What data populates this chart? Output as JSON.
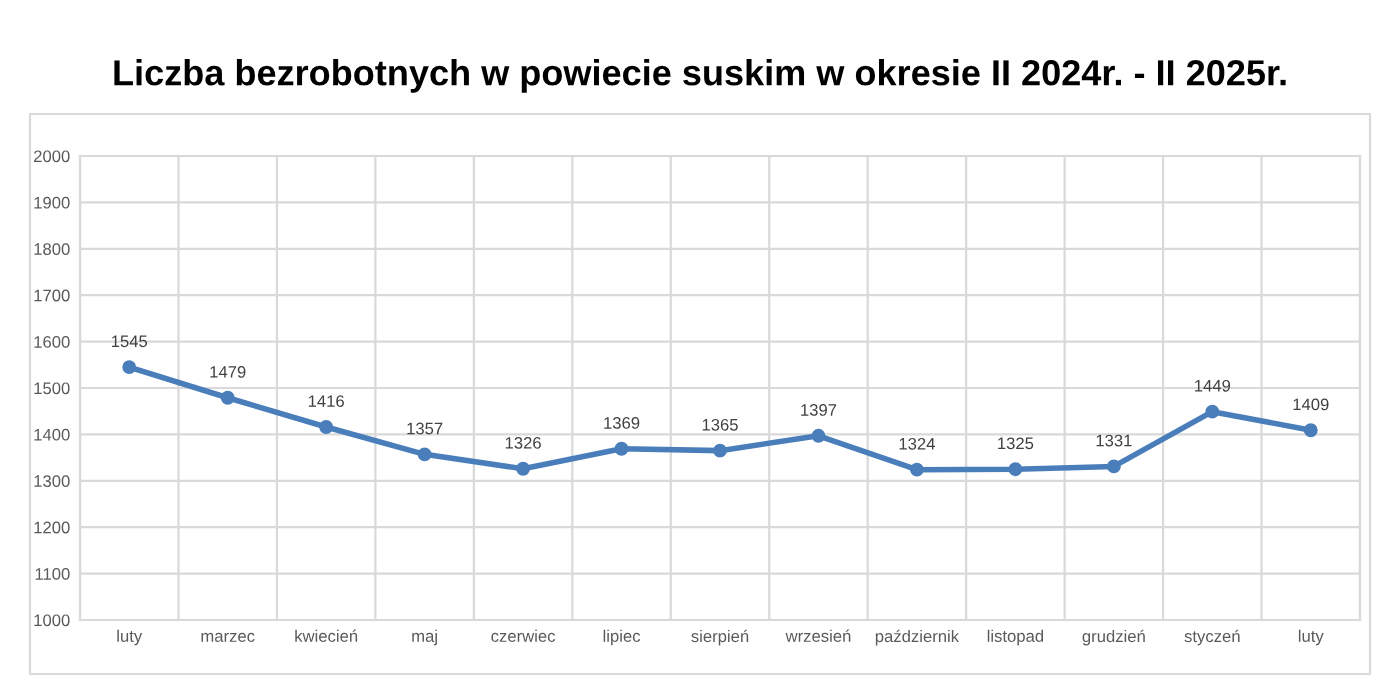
{
  "chart_data": {
    "type": "line",
    "title": "Liczba bezrobotnych w powiecie suskim w okresie II 2024r. - II 2025r.",
    "categories": [
      "luty",
      "marzec",
      "kwiecień",
      "maj",
      "czerwiec",
      "lipiec",
      "sierpień",
      "wrzesień",
      "październik",
      "listopad",
      "grudzień",
      "styczeń",
      "luty"
    ],
    "series": [
      {
        "color": "#4a7ebb",
        "values": [
          1545,
          1479,
          1416,
          1357,
          1326,
          1369,
          1365,
          1397,
          1324,
          1325,
          1331,
          1449,
          1409
        ]
      }
    ],
    "ylim": [
      1000,
      2000
    ],
    "yticks": [
      1000,
      1100,
      1200,
      1300,
      1400,
      1500,
      1600,
      1700,
      1800,
      1900,
      2000
    ],
    "grid": true,
    "marker": "circle",
    "line_style": "solid",
    "data_labels": true,
    "legend": false
  }
}
